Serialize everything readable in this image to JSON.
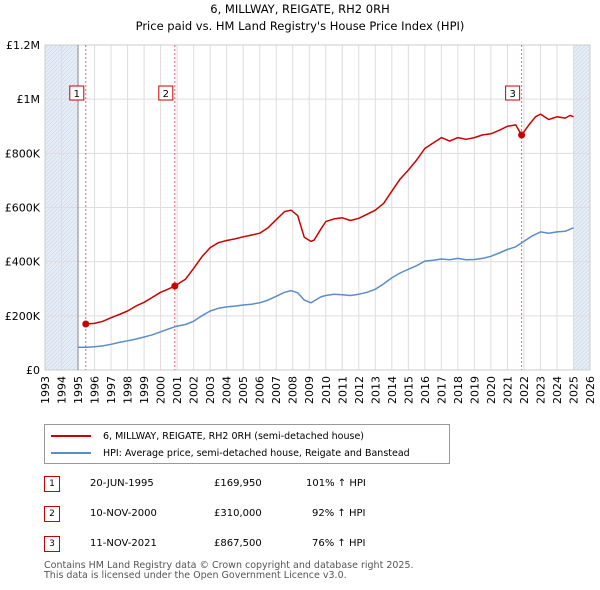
{
  "colors": {
    "property_line": "#cc0000",
    "hpi_line": "#5b8ccc",
    "grid": "#dddddd",
    "shade": "#e8eef8",
    "marker_border": "#cc0000"
  },
  "chart_data": {
    "type": "line",
    "title": "6, MILLWAY, REIGATE, RH2 0RH",
    "subtitle": "Price paid vs. HM Land Registry's House Price Index (HPI)",
    "xlabel": "",
    "ylabel": "",
    "xlim": [
      1993,
      2026
    ],
    "ylim": [
      0,
      1200000
    ],
    "x_ticks": [
      "1993",
      "1994",
      "1995",
      "1996",
      "1997",
      "1998",
      "1999",
      "2000",
      "2001",
      "2002",
      "2003",
      "2004",
      "2005",
      "2006",
      "2007",
      "2008",
      "2009",
      "2010",
      "2011",
      "2012",
      "2013",
      "2014",
      "2015",
      "2016",
      "2017",
      "2018",
      "2019",
      "2020",
      "2021",
      "2022",
      "2023",
      "2024",
      "2025",
      "2026"
    ],
    "y_ticks": [
      {
        "value": 0,
        "label": "£0"
      },
      {
        "value": 200000,
        "label": "£200K"
      },
      {
        "value": 400000,
        "label": "£400K"
      },
      {
        "value": 600000,
        "label": "£600K"
      },
      {
        "value": 800000,
        "label": "£800K"
      },
      {
        "value": 1000000,
        "label": "£1M"
      },
      {
        "value": 1200000,
        "label": "£1.2M"
      }
    ],
    "data_start": 1995.0,
    "data_end": 2025.0,
    "series": [
      {
        "name": "6, MILLWAY, REIGATE, RH2 0RH (semi-detached house)",
        "color": "#cc0000",
        "x": [
          1995.47,
          1996.0,
          1996.5,
          1997.0,
          1997.5,
          1998.0,
          1998.5,
          1999.0,
          1999.5,
          2000.0,
          2000.5,
          2000.86,
          2001.5,
          2002.0,
          2002.5,
          2003.0,
          2003.5,
          2004.0,
          2004.5,
          2005.0,
          2005.5,
          2006.0,
          2006.5,
          2007.0,
          2007.5,
          2007.9,
          2008.3,
          2008.7,
          2009.1,
          2009.3,
          2009.7,
          2010.0,
          2010.5,
          2011.0,
          2011.5,
          2012.0,
          2012.5,
          2013.0,
          2013.5,
          2014.0,
          2014.5,
          2015.0,
          2015.5,
          2016.0,
          2016.5,
          2017.0,
          2017.5,
          2018.0,
          2018.5,
          2019.0,
          2019.5,
          2020.0,
          2020.5,
          2021.0,
          2021.5,
          2021.86,
          2022.3,
          2022.7,
          2023.0,
          2023.5,
          2024.0,
          2024.5,
          2024.8,
          2025.0
        ],
        "y": [
          169950,
          172000,
          180000,
          193000,
          205000,
          218000,
          236000,
          250000,
          268000,
          287000,
          300000,
          310000,
          335000,
          375000,
          418000,
          452000,
          470000,
          478000,
          484000,
          492000,
          498000,
          505000,
          525000,
          555000,
          585000,
          590000,
          570000,
          490000,
          475000,
          480000,
          520000,
          548000,
          558000,
          562000,
          552000,
          560000,
          575000,
          590000,
          615000,
          660000,
          705000,
          738000,
          775000,
          818000,
          838000,
          858000,
          845000,
          858000,
          852000,
          858000,
          868000,
          872000,
          885000,
          900000,
          905000,
          867500,
          905000,
          935000,
          945000,
          925000,
          935000,
          930000,
          940000,
          935000
        ]
      },
      {
        "name": "HPI: Average price, semi-detached house, Reigate and Banstead",
        "color": "#5b8ccc",
        "x": [
          1995.0,
          1995.5,
          1996.0,
          1996.5,
          1997.0,
          1997.5,
          1998.0,
          1998.5,
          1999.0,
          1999.5,
          2000.0,
          2000.5,
          2001.0,
          2001.5,
          2002.0,
          2002.5,
          2003.0,
          2003.5,
          2004.0,
          2004.5,
          2005.0,
          2005.5,
          2006.0,
          2006.5,
          2007.0,
          2007.5,
          2007.9,
          2008.3,
          2008.7,
          2009.1,
          2009.3,
          2009.7,
          2010.0,
          2010.5,
          2011.0,
          2011.5,
          2012.0,
          2012.5,
          2013.0,
          2013.5,
          2014.0,
          2014.5,
          2015.0,
          2015.5,
          2016.0,
          2016.5,
          2017.0,
          2017.5,
          2018.0,
          2018.5,
          2019.0,
          2019.5,
          2020.0,
          2020.5,
          2021.0,
          2021.5,
          2022.0,
          2022.5,
          2023.0,
          2023.5,
          2024.0,
          2024.5,
          2025.0
        ],
        "y": [
          84000,
          84000,
          86000,
          89000,
          95000,
          102000,
          108000,
          114000,
          122000,
          130000,
          141000,
          152000,
          162000,
          168000,
          180000,
          200000,
          218000,
          228000,
          233000,
          236000,
          240000,
          243000,
          248000,
          258000,
          272000,
          287000,
          293000,
          285000,
          258000,
          248000,
          255000,
          270000,
          275000,
          280000,
          278000,
          275000,
          280000,
          287000,
          298000,
          318000,
          340000,
          358000,
          372000,
          385000,
          402000,
          405000,
          410000,
          407000,
          412000,
          407000,
          408000,
          412000,
          420000,
          432000,
          445000,
          455000,
          475000,
          495000,
          510000,
          505000,
          510000,
          512000,
          525000
        ]
      }
    ],
    "sales": [
      {
        "label": "1",
        "x": 1995.47,
        "value": 169950,
        "date": "20-JUN-1995",
        "price": "£169,950",
        "hpi": "101% ↑ HPI"
      },
      {
        "label": "2",
        "x": 2000.86,
        "value": 310000,
        "date": "10-NOV-2000",
        "price": "£310,000",
        "hpi": "92% ↑ HPI"
      },
      {
        "label": "3",
        "x": 2021.86,
        "value": 867500,
        "date": "11-NOV-2021",
        "price": "£867,500",
        "hpi": "76% ↑ HPI"
      }
    ]
  },
  "legend": {
    "property": "6, MILLWAY, REIGATE, RH2 0RH (semi-detached house)",
    "hpi": "HPI: Average price, semi-detached house, Reigate and Banstead"
  },
  "footer": {
    "line1": "Contains HM Land Registry data © Crown copyright and database right 2025.",
    "line2": "This data is licensed under the Open Government Licence v3.0."
  }
}
